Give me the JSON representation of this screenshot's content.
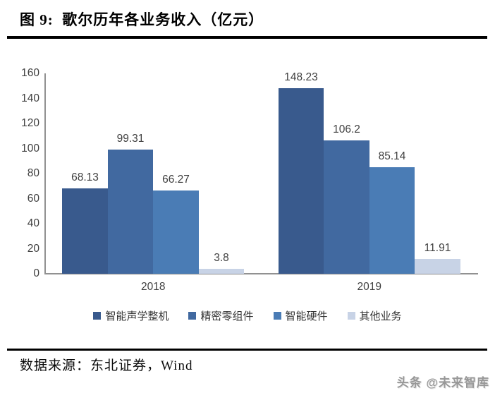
{
  "figure": {
    "title": "图 9:  歌尔历年各业务收入（亿元）",
    "source": "数据来源：东北证券，Wind",
    "watermark": "头条 @未来智库"
  },
  "colors": {
    "axis_line": "#919191",
    "tick_text": "#404040",
    "data_label_text": "#3f3f3f",
    "divider_rule": "#000000",
    "series": [
      "#395a8d",
      "#4169a0",
      "#4a7cb5",
      "#c8d3e6"
    ]
  },
  "chart_data": {
    "type": "bar",
    "title": "歌尔历年各业务收入（亿元）",
    "categories": [
      "2018",
      "2019"
    ],
    "series": [
      {
        "name": "智能声学整机",
        "color": "#395a8d",
        "values": [
          68.13,
          148.23
        ]
      },
      {
        "name": "精密零组件",
        "color": "#4169a0",
        "values": [
          99.31,
          106.2
        ]
      },
      {
        "name": "智能硬件",
        "color": "#4a7cb5",
        "values": [
          66.27,
          85.14
        ]
      },
      {
        "name": "其他业务",
        "color": "#c8d3e6",
        "values": [
          3.8,
          11.91
        ]
      }
    ],
    "xlabel": "",
    "ylabel": "",
    "ylim": [
      0,
      160
    ],
    "yticks": [
      0,
      20,
      40,
      60,
      80,
      100,
      120,
      140,
      160
    ],
    "grid": false,
    "data_labels_shown": true,
    "legend_position": "bottom"
  }
}
